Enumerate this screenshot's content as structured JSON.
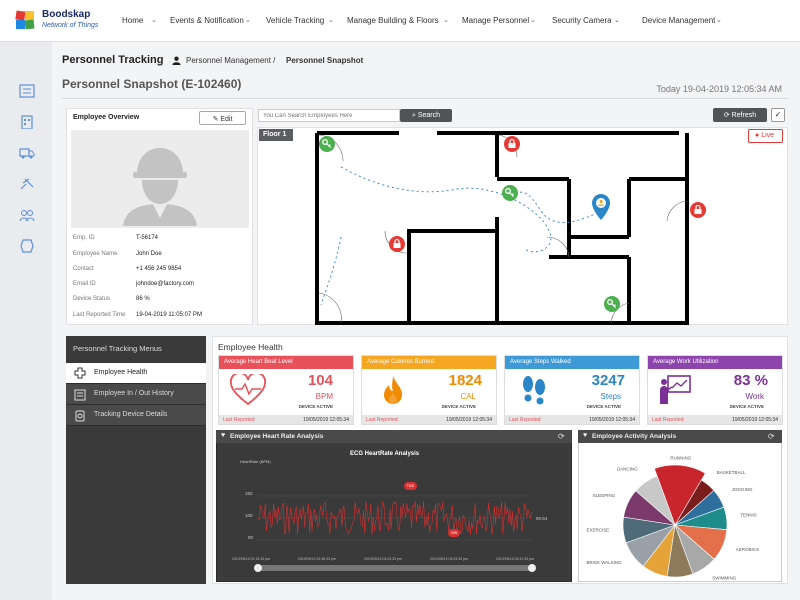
{
  "app": {
    "brand": "Boodskap",
    "tagline": "Network of Things"
  },
  "nav": [
    "Home",
    "Events & Notification",
    "Vehicle Tracking",
    "Manage Building & Floors",
    "Manage Personnel",
    "Security Camera",
    "Device Management"
  ],
  "page": {
    "title": "Personnel Tracking",
    "crumb1": "Personnel Management /",
    "crumb2": "Personnel Snapshot",
    "subtitle": "Personnel Snapshot  (E-102460)",
    "today": "Today  19-04-2019 12:05:34 AM"
  },
  "overview": {
    "title": "Employee Overview",
    "edit_label": "Edit",
    "fields": [
      {
        "label": "Emp. ID",
        "value": "T-56174"
      },
      {
        "label": "Employee Name",
        "value": "John Doe"
      },
      {
        "label": "Contact",
        "value": "+1 456 245 9854"
      },
      {
        "label": "Email ID",
        "value": "johndoe@factory.com"
      },
      {
        "label": "Device Status",
        "value": "86 %"
      },
      {
        "label": "Last Reported Time",
        "value": "19-04-2019 11:05:07 PM"
      }
    ]
  },
  "search": {
    "placeholder": "You Can Search Employees Here",
    "button": "Search"
  },
  "floor": {
    "label": "Floor  1",
    "refresh": "Refresh",
    "live": "Live"
  },
  "menus": {
    "title": "Personnel Tracking Menus",
    "items": [
      "Employee Health",
      "Employee In / Out History",
      "Tracking Device Details"
    ]
  },
  "health": {
    "title": "Employee Health",
    "cards": [
      {
        "title": "Average Heart Beat Level",
        "value": "104",
        "unit": "BPM",
        "status": "DEVICE ACTIVE",
        "reported_label": "Last Reported:",
        "reported": "19/05/2019 12:05:34",
        "color": "#e8515a",
        "fg": "#e8515a"
      },
      {
        "title": "Average Calories Burned",
        "value": "1824",
        "unit": "CAL",
        "status": "DEVICE ACTIVE",
        "reported_label": "Last Reported:",
        "reported": "19/05/2019 12:05:34",
        "color": "#f5a623",
        "fg": "#f08a00"
      },
      {
        "title": "Average Steps Walked",
        "value": "3247",
        "unit": "Steps",
        "status": "DEVICE ACTIVE",
        "reported_label": "Last Reported:",
        "reported": "19/05/2019 12:05:34",
        "color": "#3d9ad6",
        "fg": "#2a86c8"
      },
      {
        "title": "Average Work Utilization",
        "value": "83 %",
        "unit": "Work",
        "status": "DEVICE ACTIVE",
        "reported_label": "Last Reported:",
        "reported": "19/05/2019 12:05:34",
        "color": "#8e44ad",
        "fg": "#7b2f98"
      }
    ]
  },
  "heart_panel": {
    "title": "Employee Heart Rate Analysis",
    "chart_title": "ECG HeartRate Analysis",
    "ylabel": "HeartRate (BPM)",
    "ticks": [
      "150",
      "100",
      "50"
    ],
    "max_marker": "TMX",
    "min_marker": "MIN",
    "side_value": "90.54",
    "xticks": [
      "2019/05/14 02:15:33 pm",
      "2019/05/14 02:48:33 pm",
      "2019/05/14 03:02:33 pm",
      "2019/05/14 03:23:33 pm",
      "2019/05/14 03:41:33 pm"
    ]
  },
  "activity_panel": {
    "title": "Employee Activity Analysis"
  },
  "chart_data": [
    {
      "type": "pie",
      "title": "Employee Activity Analysis",
      "categories": [
        "RUNNING",
        "BASKETBALL",
        "JOGGING",
        "TENNIS",
        "AEROBICS",
        "SWIMMING",
        "WALKING",
        "BICYCLING",
        "BRISK WALKING",
        "EXERCISE",
        "SLEEPING",
        "DANCING"
      ],
      "values": [
        14,
        5,
        6,
        7,
        10,
        8,
        8,
        8,
        9,
        8,
        9,
        8
      ],
      "colors": [
        "#c9252c",
        "#7a1d1d",
        "#2e6f9e",
        "#1f8c8c",
        "#e46f4b",
        "#a8a8a8",
        "#8c7a5a",
        "#e6a33a",
        "#9aa0a8",
        "#4f6b7a",
        "#7b3a6b",
        "#c8c8c8"
      ]
    },
    {
      "type": "line",
      "title": "ECG HeartRate Analysis",
      "ylabel": "HeartRate (BPM)",
      "ylim": [
        40,
        170
      ],
      "note": "dense oscillating series"
    }
  ],
  "colors": {
    "accent": "#2a5db0",
    "dark_panel": "#3a3a3a",
    "heart_line": "#d93030"
  }
}
